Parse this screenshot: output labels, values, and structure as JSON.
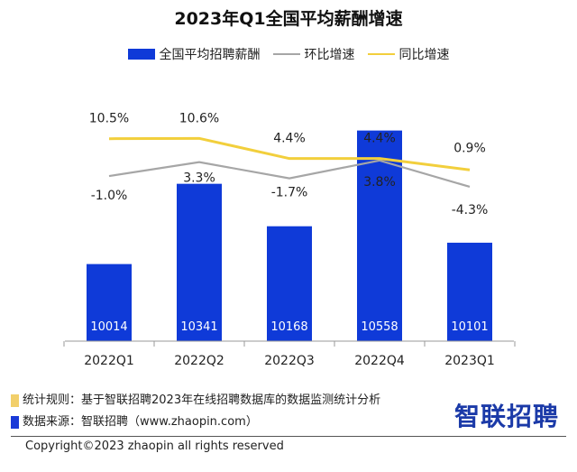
{
  "chart_data": {
    "type": "bar",
    "title": "2023年Q1全国平均薪酬增速",
    "categories": [
      "2022Q1",
      "2022Q2",
      "2022Q3",
      "2022Q4",
      "2023Q1"
    ],
    "series": [
      {
        "name": "全国平均招聘薪酬",
        "type": "bar",
        "color": "#0f3ad8",
        "values": [
          10014,
          10341,
          10168,
          10558,
          10101
        ],
        "labels": [
          "10014",
          "10341",
          "10168",
          "10558",
          "10101"
        ]
      },
      {
        "name": "环比增速",
        "type": "line",
        "color": "#a6a6a6",
        "values": [
          -1.0,
          3.3,
          -1.7,
          3.8,
          -4.3
        ],
        "labels": [
          "-1.0%",
          "3.3%",
          "-1.7%",
          "3.8%",
          "-4.3%"
        ]
      },
      {
        "name": "同比增速",
        "type": "line",
        "color": "#f2cf3c",
        "values": [
          10.5,
          10.6,
          4.4,
          4.4,
          0.9
        ],
        "labels": [
          "10.5%",
          "10.6%",
          "4.4%",
          "4.4%",
          "0.9%"
        ]
      }
    ],
    "ylim": [
      9700,
      10700
    ],
    "grid": false,
    "legend_position": "top"
  },
  "notes": {
    "rule": "统计规则：基于智联招聘2023年在线招聘数据库的数据监测统计分析",
    "source": "数据来源：智联招聘（www.zhaopin.com）",
    "rule_color": "#f2cf6a",
    "source_color": "#1a3ad8"
  },
  "logo": "智联招聘",
  "copyright": "Copyright©2023 zhaopin all rights reserved"
}
